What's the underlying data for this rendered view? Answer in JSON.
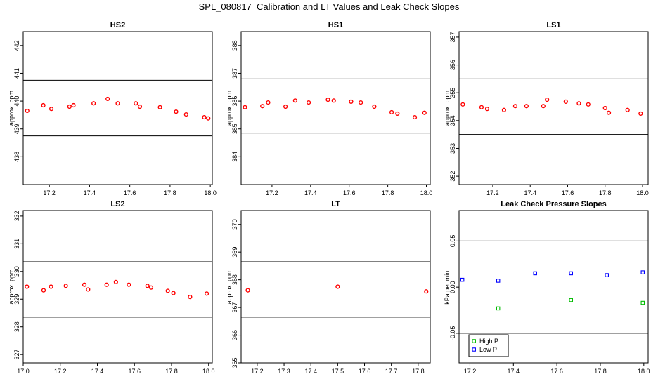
{
  "title": "SPL_080817  Calibration and LT Values and Leak Check Slopes",
  "chart_data": [
    {
      "type": "scatter",
      "title": "HS2",
      "ylabel": "approx. ppm",
      "xlim": [
        17.07,
        18.01
      ],
      "ylim": [
        437.0,
        442.5
      ],
      "xticks": [
        "17.2",
        "17.4",
        "17.6",
        "17.8",
        "18.0"
      ],
      "yticks": [
        "438",
        "439",
        "440",
        "441",
        "442"
      ],
      "hlines": [
        440.75,
        438.75
      ],
      "series": [
        {
          "color": "#ff0000",
          "x": [
            17.09,
            17.17,
            17.21,
            17.3,
            17.32,
            17.42,
            17.49,
            17.54,
            17.63,
            17.65,
            17.75,
            17.83,
            17.88,
            17.97,
            17.99
          ],
          "y": [
            439.65,
            439.85,
            439.72,
            439.8,
            439.85,
            439.92,
            440.08,
            439.92,
            439.92,
            439.8,
            439.78,
            439.62,
            439.52,
            439.42,
            439.38
          ]
        }
      ]
    },
    {
      "type": "scatter",
      "title": "HS1",
      "ylabel": "approx. ppm",
      "xlim": [
        17.04,
        18.02
      ],
      "ylim": [
        383.0,
        388.5
      ],
      "xticks": [
        "17.2",
        "17.4",
        "17.6",
        "17.8",
        "18.0"
      ],
      "yticks": [
        "384",
        "385",
        "386",
        "387",
        "388"
      ],
      "hlines": [
        386.8,
        384.85
      ],
      "series": [
        {
          "color": "#ff0000",
          "x": [
            17.06,
            17.15,
            17.18,
            17.27,
            17.32,
            17.39,
            17.49,
            17.52,
            17.61,
            17.66,
            17.73,
            17.82,
            17.85,
            17.94,
            17.99
          ],
          "y": [
            385.78,
            385.82,
            385.95,
            385.8,
            386.02,
            385.95,
            386.05,
            386.02,
            385.98,
            385.95,
            385.8,
            385.6,
            385.55,
            385.42,
            385.58
          ]
        }
      ]
    },
    {
      "type": "scatter",
      "title": "LS1",
      "ylabel": "approx. ppm",
      "xlim": [
        17.02,
        18.03
      ],
      "ylim": [
        351.7,
        357.2
      ],
      "xticks": [
        "17.2",
        "17.4",
        "17.6",
        "17.8",
        "18.0"
      ],
      "yticks": [
        "352",
        "353",
        "354",
        "355",
        "356",
        "357"
      ],
      "hlines": [
        355.5,
        353.5
      ],
      "series": [
        {
          "color": "#ff0000",
          "x": [
            17.04,
            17.14,
            17.17,
            17.26,
            17.32,
            17.38,
            17.47,
            17.49,
            17.59,
            17.66,
            17.71,
            17.8,
            17.82,
            17.92,
            17.99
          ],
          "y": [
            354.58,
            354.48,
            354.42,
            354.38,
            354.52,
            354.52,
            354.52,
            354.75,
            354.68,
            354.62,
            354.58,
            354.45,
            354.28,
            354.38,
            354.25
          ]
        }
      ]
    },
    {
      "type": "scatter",
      "title": "LS2",
      "ylabel": "approx. ppm",
      "xlim": [
        17.0,
        18.02
      ],
      "ylim": [
        326.7,
        332.2
      ],
      "xticks": [
        "17.0",
        "17.2",
        "17.4",
        "17.6",
        "17.8",
        "18.0"
      ],
      "yticks": [
        "327",
        "328",
        "329",
        "330",
        "331",
        "332"
      ],
      "hlines": [
        330.35,
        328.35
      ],
      "series": [
        {
          "color": "#ff0000",
          "x": [
            17.02,
            17.11,
            17.15,
            17.23,
            17.33,
            17.35,
            17.45,
            17.5,
            17.57,
            17.67,
            17.69,
            17.78,
            17.81,
            17.9,
            17.99
          ],
          "y": [
            329.45,
            329.32,
            329.45,
            329.48,
            329.52,
            329.35,
            329.52,
            329.62,
            329.52,
            329.48,
            329.42,
            329.3,
            329.22,
            329.08,
            329.2
          ]
        }
      ]
    },
    {
      "type": "scatter",
      "title": "LT",
      "ylabel": "approx. ppm",
      "xlim": [
        17.14,
        17.845
      ],
      "ylim": [
        365.0,
        370.5
      ],
      "xticks": [
        "17.2",
        "17.3",
        "17.4",
        "17.5",
        "17.6",
        "17.7",
        "17.8"
      ],
      "yticks": [
        "365",
        "366",
        "367",
        "368",
        "369",
        "370"
      ],
      "hlines": [
        368.65,
        366.65
      ],
      "series": [
        {
          "color": "#ff0000",
          "x": [
            17.165,
            17.5,
            17.83
          ],
          "y": [
            367.62,
            367.75,
            367.58
          ]
        }
      ]
    },
    {
      "type": "scatter",
      "title": "Leak Check Pressure Slopes",
      "ylabel": "kPa per min.",
      "xlim": [
        17.15,
        18.02
      ],
      "ylim": [
        -0.082,
        0.083
      ],
      "xticks": [
        "17.2",
        "17.4",
        "17.6",
        "17.8",
        "18.0"
      ],
      "yticks": [
        "-0.05",
        "0.00",
        "0.05"
      ],
      "hlines": [
        0.05,
        -0.05
      ],
      "legend": "bottom-left",
      "series": [
        {
          "name": "High P",
          "color": "#00bb00",
          "x": [
            17.33,
            17.665,
            17.995
          ],
          "y": [
            -0.023,
            -0.014,
            -0.017
          ]
        },
        {
          "name": "Low P",
          "color": "#0000ff",
          "x": [
            17.165,
            17.33,
            17.5,
            17.665,
            17.83,
            17.995
          ],
          "y": [
            0.008,
            0.007,
            0.015,
            0.015,
            0.013,
            0.016
          ]
        }
      ]
    }
  ]
}
